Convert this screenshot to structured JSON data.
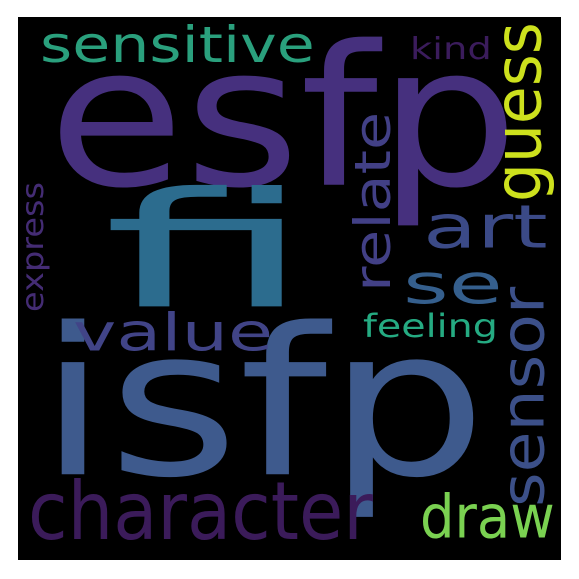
{
  "words": [
    {
      "key": "esfp",
      "text": "esfp",
      "color": "#46307e"
    },
    {
      "key": "isfp",
      "text": "isfp",
      "color": "#3e5a8d"
    },
    {
      "key": "fi",
      "text": "fi",
      "color": "#2c6c8e"
    },
    {
      "key": "character",
      "text": "character",
      "color": "#3b1b5a"
    },
    {
      "key": "sensor",
      "text": "sensor",
      "color": "#3c5089"
    },
    {
      "key": "sensitive",
      "text": "sensitive",
      "color": "#2aa07d"
    },
    {
      "key": "draw",
      "text": "draw",
      "color": "#7ad151"
    },
    {
      "key": "value",
      "text": "value",
      "color": "#414487"
    },
    {
      "key": "guess",
      "text": "guess",
      "color": "#cde11d"
    },
    {
      "key": "relate",
      "text": "relate",
      "color": "#424086"
    },
    {
      "key": "art",
      "text": "art",
      "color": "#3b4a87"
    },
    {
      "key": "se",
      "text": "se",
      "color": "#355f8d"
    },
    {
      "key": "feeling",
      "text": "feeling",
      "color": "#25ab82"
    },
    {
      "key": "express",
      "text": "express",
      "color": "#442c74"
    },
    {
      "key": "kind",
      "text": "kind",
      "color": "#3b1c5c"
    }
  ]
}
